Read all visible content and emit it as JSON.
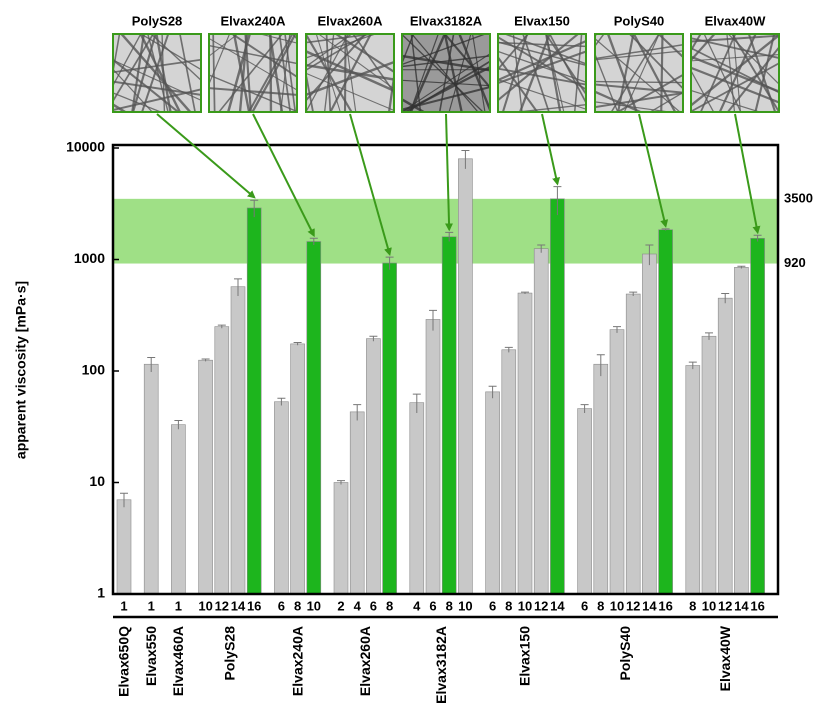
{
  "chart_data": {
    "type": "bar",
    "y_label": "apparent viscosity [mPa·s]",
    "log_y": true,
    "ylim": [
      1,
      10000
    ],
    "yticks": [
      1,
      10,
      100,
      1000,
      10000
    ],
    "band": [
      920,
      3500
    ],
    "band_color": "#7fd65e",
    "image_labels": [
      "PolyS28",
      "Elvax240A",
      "Elvax260A",
      "Elvax3182A",
      "Elvax150",
      "PolyS40",
      "Elvax40W"
    ],
    "groups": [
      {
        "name": "Elvax650Q",
        "categories": [
          "1"
        ],
        "values": [
          7
        ],
        "errors": [
          1
        ],
        "colors": [
          "#c8c8c8"
        ]
      },
      {
        "name": "Elvax550",
        "categories": [
          "1"
        ],
        "values": [
          115
        ],
        "errors": [
          17
        ],
        "colors": [
          "#c8c8c8"
        ]
      },
      {
        "name": "Elvax460A",
        "categories": [
          "1"
        ],
        "values": [
          33
        ],
        "errors": [
          3
        ],
        "colors": [
          "#c8c8c8"
        ]
      },
      {
        "name": "PolyS28",
        "categories": [
          "10",
          "12",
          "14",
          "16"
        ],
        "values": [
          125,
          250,
          570,
          2900
        ],
        "errors": [
          3,
          8,
          100,
          500
        ],
        "colors": [
          "#c8c8c8",
          "#c8c8c8",
          "#c8c8c8",
          "#1db51d"
        ]
      },
      {
        "name": "Elvax240A",
        "categories": [
          "6",
          "8",
          "10"
        ],
        "values": [
          53,
          175,
          1450
        ],
        "errors": [
          4,
          5,
          100
        ],
        "colors": [
          "#c8c8c8",
          "#c8c8c8",
          "#1db51d"
        ]
      },
      {
        "name": "Elvax260A",
        "categories": [
          "2",
          "4",
          "6",
          "8"
        ],
        "values": [
          10,
          43,
          195,
          930
        ],
        "errors": [
          0.4,
          7,
          10,
          120
        ],
        "colors": [
          "#c8c8c8",
          "#c8c8c8",
          "#c8c8c8",
          "#1db51d"
        ]
      },
      {
        "name": "Elvax3182A",
        "categories": [
          "4",
          "6",
          "8",
          "10"
        ],
        "values": [
          52,
          290,
          1600,
          8000
        ],
        "errors": [
          10,
          60,
          150,
          1500
        ],
        "colors": [
          "#c8c8c8",
          "#c8c8c8",
          "#1db51d",
          "#c8c8c8"
        ]
      },
      {
        "name": "Elvax150",
        "categories": [
          "6",
          "8",
          "10",
          "12",
          "14"
        ],
        "values": [
          65,
          155,
          500,
          1250,
          3500
        ],
        "errors": [
          8,
          8,
          10,
          100,
          1000
        ],
        "colors": [
          "#c8c8c8",
          "#c8c8c8",
          "#c8c8c8",
          "#c8c8c8",
          "#1db51d"
        ]
      },
      {
        "name": "PolyS40",
        "categories": [
          "6",
          "8",
          "10",
          "12",
          "14",
          "16"
        ],
        "values": [
          46,
          115,
          235,
          490,
          1120,
          1850
        ],
        "errors": [
          4,
          25,
          15,
          20,
          230,
          30
        ],
        "colors": [
          "#c8c8c8",
          "#c8c8c8",
          "#c8c8c8",
          "#c8c8c8",
          "#c8c8c8",
          "#1db51d"
        ]
      },
      {
        "name": "Elvax40W",
        "categories": [
          "8",
          "10",
          "12",
          "14",
          "16"
        ],
        "values": [
          112,
          205,
          450,
          850,
          1550
        ],
        "errors": [
          8,
          15,
          45,
          20,
          100
        ],
        "colors": [
          "#c8c8c8",
          "#c8c8c8",
          "#c8c8c8",
          "#c8c8c8",
          "#1db51d"
        ]
      }
    ]
  }
}
